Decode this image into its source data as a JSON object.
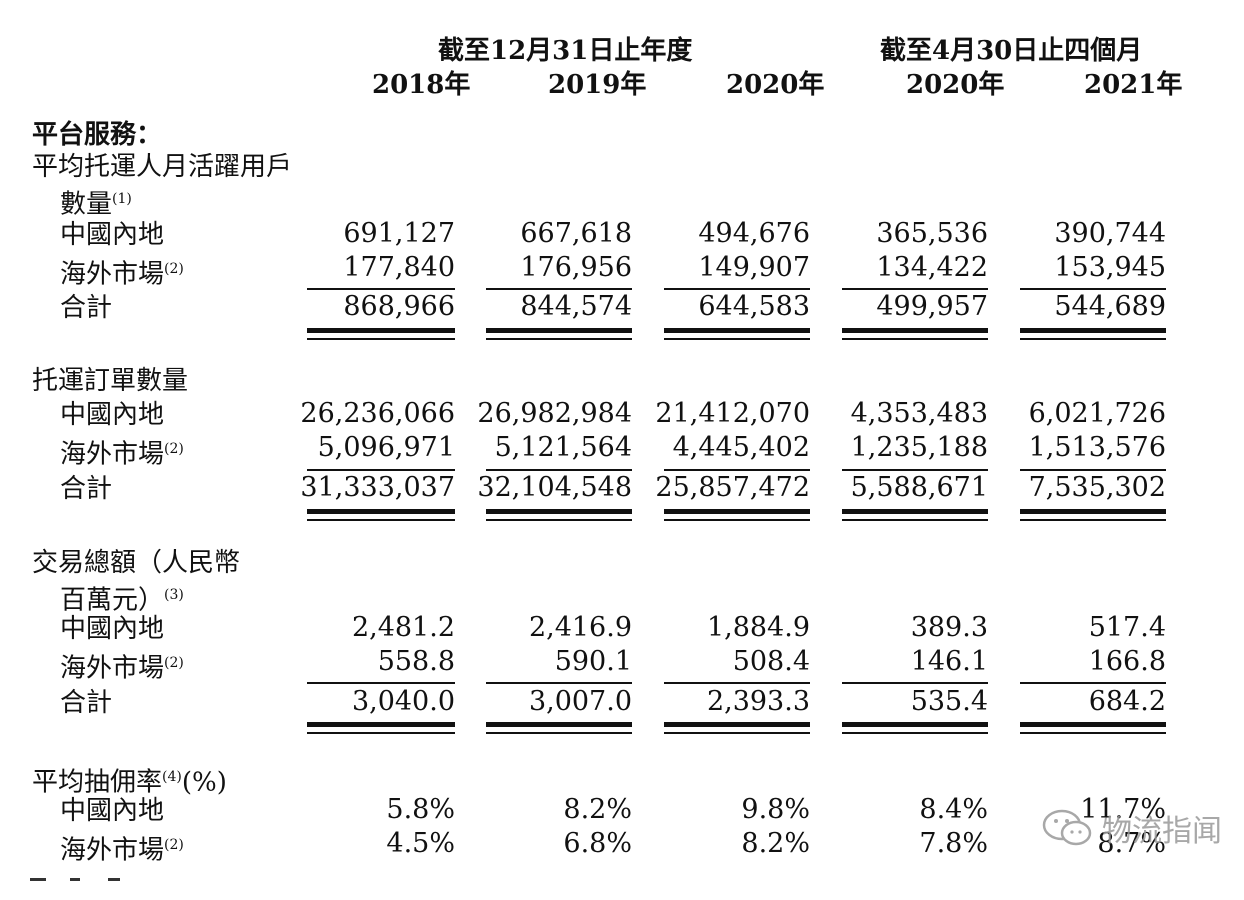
{
  "header": {
    "group1": "截至12月31日止年度",
    "group2": "截至4月30日止四個月",
    "years": [
      "2018年",
      "2019年",
      "2020年",
      "2020年",
      "2021年"
    ]
  },
  "sections": [
    {
      "title_lines": [
        "平台服務：",
        "平均托運人月活躍用戶"
      ],
      "title_cont": "數量",
      "title_cont_note": "(1)",
      "rows": [
        {
          "label": "中國內地",
          "note": "",
          "values": [
            "691,127",
            "667,618",
            "494,676",
            "365,536",
            "390,744"
          ]
        },
        {
          "label": "海外市場",
          "note": "(2)",
          "values": [
            "177,840",
            "176,956",
            "149,907",
            "134,422",
            "153,945"
          ]
        }
      ],
      "total": {
        "label": "合計",
        "values": [
          "868,966",
          "844,574",
          "644,583",
          "499,957",
          "544,689"
        ]
      }
    },
    {
      "title_lines": [
        "托運訂單數量"
      ],
      "rows": [
        {
          "label": "中國內地",
          "note": "",
          "values": [
            "26,236,066",
            "26,982,984",
            "21,412,070",
            "4,353,483",
            "6,021,726"
          ]
        },
        {
          "label": "海外市場",
          "note": "(2)",
          "values": [
            "5,096,971",
            "5,121,564",
            "4,445,402",
            "1,235,188",
            "1,513,576"
          ]
        }
      ],
      "total": {
        "label": "合計",
        "values": [
          "31,333,037",
          "32,104,548",
          "25,857,472",
          "5,588,671",
          "7,535,302"
        ]
      }
    },
    {
      "title_lines": [
        "交易總額（人民幣"
      ],
      "title_cont": "百萬元）",
      "title_cont_note": "(3)",
      "rows": [
        {
          "label": "中國內地",
          "note": "",
          "values": [
            "2,481.2",
            "2,416.9",
            "1,884.9",
            "389.3",
            "517.4"
          ]
        },
        {
          "label": "海外市場",
          "note": "(2)",
          "values": [
            "558.8",
            "590.1",
            "508.4",
            "146.1",
            "166.8"
          ]
        }
      ],
      "total": {
        "label": "合計",
        "values": [
          "3,040.0",
          "3,007.0",
          "2,393.3",
          "535.4",
          "684.2"
        ]
      }
    },
    {
      "title_lines": [
        "平均抽佣率"
      ],
      "title_note": "(4)",
      "title_suffix": "(%)",
      "rows": [
        {
          "label": "中國內地",
          "note": "",
          "values": [
            "5.8%",
            "8.2%",
            "9.8%",
            "8.4%",
            "11.7%"
          ]
        },
        {
          "label": "海外市場",
          "note": "(2)",
          "values": [
            "4.5%",
            "6.8%",
            "8.2%",
            "7.8%",
            "8.7%"
          ]
        }
      ]
    }
  ],
  "watermark": {
    "text": "物流指闻",
    "icon": "wechat-icon"
  }
}
